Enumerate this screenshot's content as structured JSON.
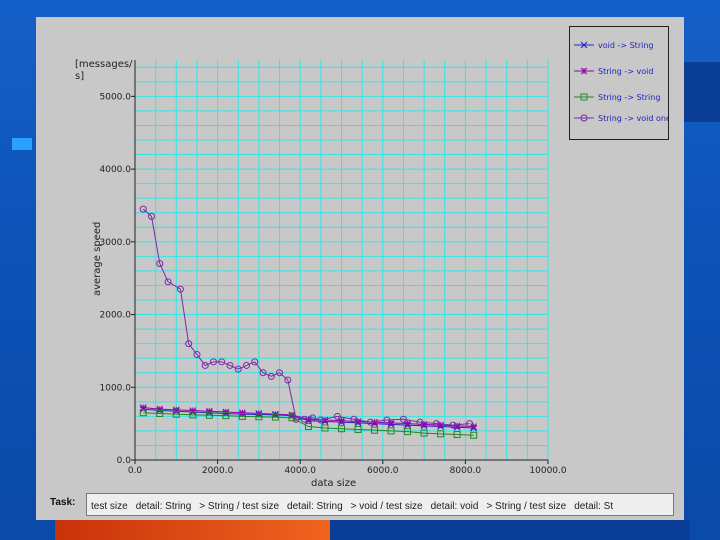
{
  "window": {
    "task_label": "Task:",
    "task_items": [
      "test size",
      "detail: String",
      "> String / test size",
      "detail: String",
      "> void / test size",
      "detail: void",
      "> String / test size",
      "detail: St"
    ]
  },
  "chart_data": {
    "type": "line",
    "ylabel_top": "[messages/ s]",
    "ylabel": "average speed",
    "xlabel": "data size",
    "xlim": [
      0,
      10000
    ],
    "ylim": [
      0,
      5500
    ],
    "x_ticks": [
      "0.0",
      "2000.0",
      "4000.0",
      "6000.0",
      "8000.0",
      "10000.0"
    ],
    "y_ticks": [
      "0.0",
      "1000.0",
      "2000.0",
      "3000.0",
      "4000.0",
      "5000.0"
    ],
    "grid": true,
    "legend_position": "top-right",
    "series": [
      {
        "name": "void -> String",
        "marker": "x",
        "color": "#2222cc",
        "x": [
          200,
          600,
          1000,
          1400,
          1800,
          2200,
          2600,
          3000,
          3400,
          3800,
          4200,
          4600,
          5000,
          5400,
          5800,
          6200,
          6600,
          7000,
          7400,
          7800,
          8200
        ],
        "y": [
          700,
          680,
          670,
          660,
          650,
          640,
          630,
          625,
          620,
          610,
          540,
          530,
          520,
          510,
          500,
          490,
          480,
          470,
          460,
          450,
          440
        ]
      },
      {
        "name": "String -> void",
        "marker": "star",
        "color": "#9900aa",
        "x": [
          200,
          600,
          1000,
          1400,
          1800,
          2200,
          2600,
          3000,
          3400,
          3800,
          4200,
          4600,
          5000,
          5400,
          5800,
          6200,
          6600,
          7000,
          7400,
          7800,
          8200
        ],
        "y": [
          720,
          700,
          690,
          680,
          670,
          660,
          650,
          640,
          630,
          620,
          560,
          550,
          540,
          530,
          520,
          510,
          500,
          490,
          480,
          470,
          460
        ]
      },
      {
        "name": "String -> String",
        "marker": "square",
        "color": "#228822",
        "x": [
          200,
          600,
          1000,
          1400,
          1800,
          2200,
          2600,
          3000,
          3400,
          3800,
          4200,
          4600,
          5000,
          5400,
          5800,
          6200,
          6600,
          7000,
          7400,
          7800,
          8200
        ],
        "y": [
          650,
          640,
          630,
          620,
          615,
          610,
          600,
          595,
          590,
          580,
          460,
          440,
          430,
          420,
          410,
          400,
          390,
          370,
          360,
          350,
          340
        ]
      },
      {
        "name": "String -> void oneway",
        "marker": "circle",
        "color": "#7a2aaa",
        "x": [
          200,
          400,
          600,
          800,
          1100,
          1300,
          1500,
          1700,
          1900,
          2100,
          2300,
          2500,
          2700,
          2900,
          3100,
          3300,
          3500,
          3700,
          3900,
          4100,
          4300,
          4500,
          4900,
          5300,
          5700,
          6100,
          6500,
          6900,
          7300,
          7700,
          8100
        ],
        "y": [
          3450,
          3350,
          2700,
          2450,
          2350,
          1600,
          1450,
          1300,
          1350,
          1350,
          1300,
          1250,
          1300,
          1350,
          1200,
          1150,
          1200,
          1100,
          560,
          560,
          580,
          550,
          600,
          560,
          520,
          550,
          560,
          520,
          500,
          480,
          500
        ]
      }
    ]
  }
}
